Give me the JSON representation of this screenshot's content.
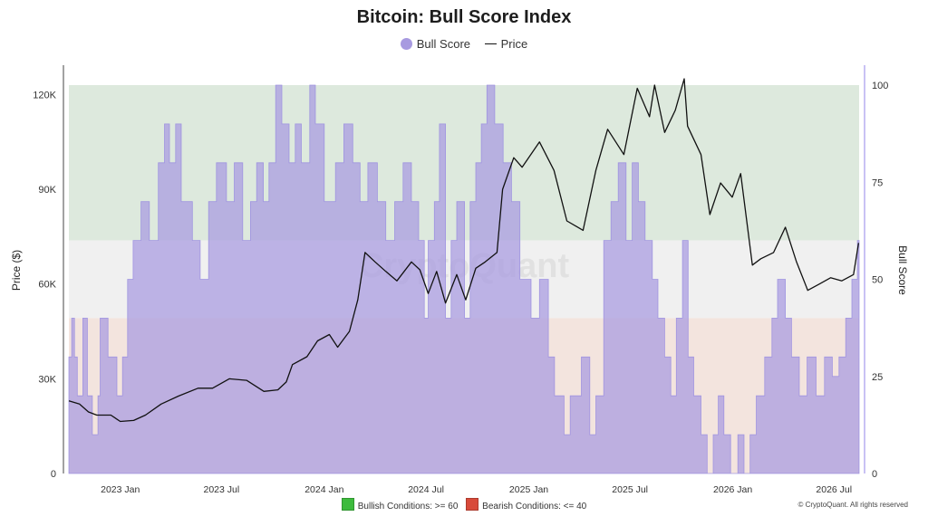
{
  "chart_data": {
    "type": "area",
    "title": "Bitcoin: Bull Score Index",
    "watermark": "CryptoQuant",
    "credit": "© CryptoQuant. All rights reserved",
    "legend": {
      "position": "top-center",
      "series_labels": [
        "Bull Score",
        "Price"
      ]
    },
    "zone_legend": [
      {
        "label": "Bullish Conditions: >= 60",
        "color": "#3dbb3d"
      },
      {
        "label": "Bearish Conditions: <= 40",
        "color": "#d84a3a"
      }
    ],
    "colors": {
      "bull_score_fill": "#a79ae0",
      "bull_score_line": "#9b8fe0",
      "price": "#111111",
      "bull_zone": "#dde9dd",
      "neutral_zone": "#f0f0f0",
      "bear_zone": "#f3e4de"
    },
    "xlabel": "",
    "ylabel_left": "Price ($)",
    "ylabel_right": "Bull Score",
    "x_range": [
      "2022-10-01",
      "2026-08-15"
    ],
    "x_ticks": [
      {
        "label": "2023 Jan",
        "date": "2023-01-01"
      },
      {
        "label": "2023 Jul",
        "date": "2023-07-01"
      },
      {
        "label": "2024 Jan",
        "date": "2024-01-01"
      },
      {
        "label": "2024 Jul",
        "date": "2024-07-01"
      },
      {
        "label": "2025 Jan",
        "date": "2025-01-01"
      },
      {
        "label": "2025 Jul",
        "date": "2025-07-01"
      },
      {
        "label": "2026 Jan",
        "date": "2026-01-01"
      },
      {
        "label": "2026 Jul",
        "date": "2026-07-01"
      }
    ],
    "y_left": {
      "range": [
        0,
        123000
      ],
      "ticks": [
        0,
        30000,
        60000,
        90000,
        120000
      ],
      "tick_labels": [
        "0",
        "30K",
        "60K",
        "90K",
        "120K"
      ]
    },
    "y_right": {
      "range": [
        0,
        100
      ],
      "ticks": [
        0,
        25,
        50,
        75,
        100
      ],
      "tick_labels": [
        "0",
        "25",
        "50",
        "75",
        "100"
      ]
    },
    "zones": [
      {
        "name": "bullish",
        "from": 60,
        "to": 100
      },
      {
        "name": "neutral",
        "from": 40,
        "to": 60
      },
      {
        "name": "bearish",
        "from": 0,
        "to": 40
      }
    ],
    "series": [
      {
        "name": "Bull Score",
        "axis": "right",
        "style": "step-area",
        "points": [
          [
            "2022-10-01",
            30
          ],
          [
            "2022-10-06",
            40
          ],
          [
            "2022-10-11",
            30
          ],
          [
            "2022-10-16",
            20
          ],
          [
            "2022-10-26",
            40
          ],
          [
            "2022-11-03",
            20
          ],
          [
            "2022-11-12",
            10
          ],
          [
            "2022-11-22",
            20
          ],
          [
            "2022-11-26",
            40
          ],
          [
            "2022-12-10",
            30
          ],
          [
            "2022-12-26",
            20
          ],
          [
            "2023-01-05",
            30
          ],
          [
            "2023-01-14",
            50
          ],
          [
            "2023-01-24",
            60
          ],
          [
            "2023-02-07",
            70
          ],
          [
            "2023-02-22",
            60
          ],
          [
            "2023-03-10",
            80
          ],
          [
            "2023-03-21",
            90
          ],
          [
            "2023-03-30",
            80
          ],
          [
            "2023-04-10",
            90
          ],
          [
            "2023-04-20",
            70
          ],
          [
            "2023-05-10",
            60
          ],
          [
            "2023-05-24",
            50
          ],
          [
            "2023-06-08",
            70
          ],
          [
            "2023-06-22",
            80
          ],
          [
            "2023-07-10",
            70
          ],
          [
            "2023-07-24",
            80
          ],
          [
            "2023-08-08",
            60
          ],
          [
            "2023-08-22",
            70
          ],
          [
            "2023-09-02",
            80
          ],
          [
            "2023-09-14",
            70
          ],
          [
            "2023-09-24",
            80
          ],
          [
            "2023-10-06",
            100
          ],
          [
            "2023-10-17",
            90
          ],
          [
            "2023-10-30",
            80
          ],
          [
            "2023-11-10",
            90
          ],
          [
            "2023-11-21",
            80
          ],
          [
            "2023-12-06",
            100
          ],
          [
            "2023-12-16",
            90
          ],
          [
            "2024-01-01",
            70
          ],
          [
            "2024-01-21",
            80
          ],
          [
            "2024-02-05",
            90
          ],
          [
            "2024-02-21",
            80
          ],
          [
            "2024-03-05",
            70
          ],
          [
            "2024-03-19",
            80
          ],
          [
            "2024-04-05",
            70
          ],
          [
            "2024-04-20",
            60
          ],
          [
            "2024-05-06",
            70
          ],
          [
            "2024-05-21",
            80
          ],
          [
            "2024-06-05",
            70
          ],
          [
            "2024-06-18",
            60
          ],
          [
            "2024-06-28",
            40
          ],
          [
            "2024-07-05",
            60
          ],
          [
            "2024-07-16",
            70
          ],
          [
            "2024-07-25",
            90
          ],
          [
            "2024-08-05",
            40
          ],
          [
            "2024-08-15",
            60
          ],
          [
            "2024-08-25",
            70
          ],
          [
            "2024-09-08",
            40
          ],
          [
            "2024-09-18",
            70
          ],
          [
            "2024-09-28",
            80
          ],
          [
            "2024-10-08",
            90
          ],
          [
            "2024-10-18",
            100
          ],
          [
            "2024-11-01",
            90
          ],
          [
            "2024-11-16",
            80
          ],
          [
            "2024-12-01",
            70
          ],
          [
            "2024-12-16",
            50
          ],
          [
            "2025-01-05",
            40
          ],
          [
            "2025-01-20",
            50
          ],
          [
            "2025-02-05",
            30
          ],
          [
            "2025-02-16",
            20
          ],
          [
            "2025-03-05",
            10
          ],
          [
            "2025-03-16",
            20
          ],
          [
            "2025-04-05",
            30
          ],
          [
            "2025-04-20",
            10
          ],
          [
            "2025-05-01",
            20
          ],
          [
            "2025-05-15",
            60
          ],
          [
            "2025-05-28",
            70
          ],
          [
            "2025-06-10",
            80
          ],
          [
            "2025-06-24",
            60
          ],
          [
            "2025-07-05",
            80
          ],
          [
            "2025-07-16",
            70
          ],
          [
            "2025-07-28",
            60
          ],
          [
            "2025-08-10",
            50
          ],
          [
            "2025-08-20",
            40
          ],
          [
            "2025-09-01",
            30
          ],
          [
            "2025-09-12",
            20
          ],
          [
            "2025-09-22",
            40
          ],
          [
            "2025-10-03",
            60
          ],
          [
            "2025-10-13",
            30
          ],
          [
            "2025-10-23",
            20
          ],
          [
            "2025-11-05",
            10
          ],
          [
            "2025-11-16",
            0
          ],
          [
            "2025-11-27",
            10
          ],
          [
            "2025-12-06",
            20
          ],
          [
            "2025-12-16",
            10
          ],
          [
            "2025-12-28",
            0
          ],
          [
            "2026-01-10",
            10
          ],
          [
            "2026-01-21",
            0
          ],
          [
            "2026-02-01",
            10
          ],
          [
            "2026-02-12",
            20
          ],
          [
            "2026-02-27",
            30
          ],
          [
            "2026-03-12",
            40
          ],
          [
            "2026-03-22",
            50
          ],
          [
            "2026-04-05",
            40
          ],
          [
            "2026-04-16",
            30
          ],
          [
            "2026-04-30",
            20
          ],
          [
            "2026-05-14",
            30
          ],
          [
            "2026-05-30",
            20
          ],
          [
            "2026-06-14",
            30
          ],
          [
            "2026-06-28",
            25
          ],
          [
            "2026-07-10",
            30
          ],
          [
            "2026-07-22",
            40
          ],
          [
            "2026-08-02",
            50
          ],
          [
            "2026-08-12",
            60
          ]
        ]
      },
      {
        "name": "Price",
        "axis": "left",
        "style": "line",
        "points": [
          [
            "2022-10-01",
            23000
          ],
          [
            "2022-10-20",
            22000
          ],
          [
            "2022-11-05",
            19500
          ],
          [
            "2022-11-20",
            18500
          ],
          [
            "2022-12-15",
            18500
          ],
          [
            "2023-01-01",
            16500
          ],
          [
            "2023-01-25",
            16800
          ],
          [
            "2023-02-15",
            18500
          ],
          [
            "2023-03-15",
            22000
          ],
          [
            "2023-04-15",
            24500
          ],
          [
            "2023-05-20",
            27000
          ],
          [
            "2023-06-15",
            27000
          ],
          [
            "2023-07-15",
            30000
          ],
          [
            "2023-08-15",
            29500
          ],
          [
            "2023-09-15",
            26000
          ],
          [
            "2023-10-10",
            26500
          ],
          [
            "2023-10-25",
            29000
          ],
          [
            "2023-11-05",
            34500
          ],
          [
            "2023-12-01",
            37000
          ],
          [
            "2023-12-20",
            42000
          ],
          [
            "2024-01-10",
            44000
          ],
          [
            "2024-01-25",
            40000
          ],
          [
            "2024-02-15",
            45000
          ],
          [
            "2024-03-01",
            55000
          ],
          [
            "2024-03-14",
            70000
          ],
          [
            "2024-04-01",
            67000
          ],
          [
            "2024-04-20",
            64000
          ],
          [
            "2024-05-10",
            61000
          ],
          [
            "2024-06-05",
            67000
          ],
          [
            "2024-06-20",
            64500
          ],
          [
            "2024-07-05",
            57000
          ],
          [
            "2024-07-20",
            64000
          ],
          [
            "2024-08-05",
            54000
          ],
          [
            "2024-08-25",
            63000
          ],
          [
            "2024-09-10",
            55000
          ],
          [
            "2024-09-28",
            65000
          ],
          [
            "2024-10-15",
            67000
          ],
          [
            "2024-11-05",
            70000
          ],
          [
            "2024-11-15",
            90000
          ],
          [
            "2024-12-05",
            100000
          ],
          [
            "2024-12-20",
            97000
          ],
          [
            "2025-01-20",
            105000
          ],
          [
            "2025-02-15",
            96000
          ],
          [
            "2025-03-10",
            80000
          ],
          [
            "2025-04-08",
            77000
          ],
          [
            "2025-05-01",
            96000
          ],
          [
            "2025-05-22",
            109000
          ],
          [
            "2025-06-20",
            101000
          ],
          [
            "2025-07-14",
            122000
          ],
          [
            "2025-08-05",
            113000
          ],
          [
            "2025-08-14",
            123000
          ],
          [
            "2025-09-01",
            108000
          ],
          [
            "2025-09-20",
            115000
          ],
          [
            "2025-10-06",
            125000
          ],
          [
            "2025-10-12",
            110000
          ],
          [
            "2025-11-05",
            101000
          ],
          [
            "2025-11-21",
            82000
          ],
          [
            "2025-12-10",
            92000
          ],
          [
            "2025-12-31",
            87500
          ],
          [
            "2026-01-15",
            95000
          ],
          [
            "2026-02-05",
            66000
          ],
          [
            "2026-02-20",
            68000
          ],
          [
            "2026-03-15",
            70000
          ],
          [
            "2026-04-05",
            78000
          ],
          [
            "2026-04-25",
            67000
          ],
          [
            "2026-05-15",
            58000
          ],
          [
            "2026-06-05",
            60000
          ],
          [
            "2026-06-25",
            62000
          ],
          [
            "2026-07-15",
            61000
          ],
          [
            "2026-08-05",
            63000
          ],
          [
            "2026-08-14",
            73000
          ]
        ]
      }
    ]
  }
}
